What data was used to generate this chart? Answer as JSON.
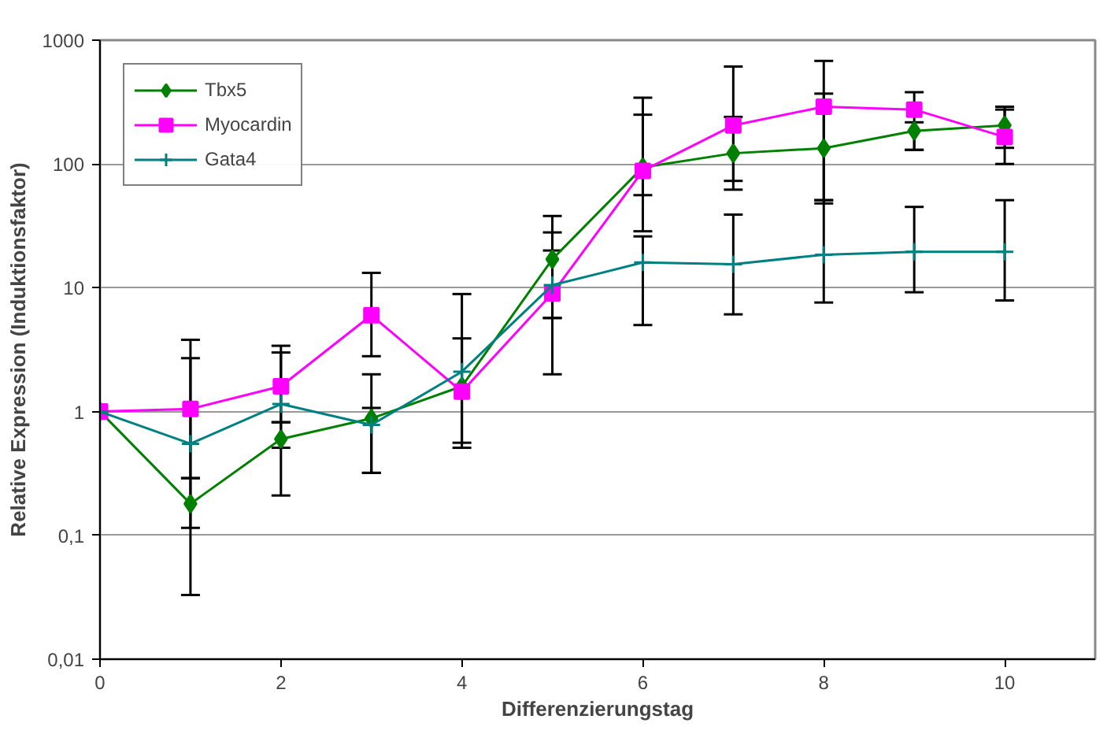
{
  "chart_data": {
    "type": "line",
    "xlabel": "Differenzierungstag",
    "ylabel": "Relative Expression (Induktionsfaktor)",
    "x": [
      0,
      1,
      2,
      3,
      4,
      5,
      6,
      7,
      8,
      9,
      10
    ],
    "log": "y",
    "xlim": [
      0,
      11
    ],
    "xticks": [
      0,
      2,
      4,
      6,
      8,
      10
    ],
    "ylim": [
      0.01,
      1000
    ],
    "yticks": [
      {
        "value": 0.01,
        "label": "0,01"
      },
      {
        "value": 0.1,
        "label": "0,1"
      },
      1,
      10,
      100,
      1000
    ],
    "grid": "y",
    "legend": "top left",
    "line_style": "solid",
    "series": [
      {
        "name": "Tbx5",
        "color": "#008000",
        "marker": "diamond",
        "values": [
          1,
          0.18,
          0.6,
          0.88,
          1.6,
          17,
          94,
          122,
          134,
          185,
          205
        ],
        "errors": [
          null,
          [
            0.033,
            0.29
          ],
          [
            0.21,
            0.82
          ],
          [
            0.32,
            2.0
          ],
          [
            0.56,
            3.9
          ],
          [
            5.7,
            38
          ],
          [
            28.6,
            343
          ],
          [
            62,
            240
          ],
          [
            48,
            370
          ],
          [
            130,
            217
          ],
          [
            135,
            290
          ]
        ]
      },
      {
        "name": "Myocardin",
        "color": "#ff00ff",
        "marker": "square",
        "values": [
          1,
          1.05,
          1.6,
          6,
          1.45,
          9,
          88,
          205,
          290,
          275,
          165
        ],
        "errors": [
          null,
          [
            0.29,
            3.8
          ],
          [
            0.82,
            3.4
          ],
          [
            2.8,
            13.2
          ],
          null,
          [
            2.0,
            28
          ],
          [
            56,
            250
          ],
          [
            73,
            612
          ],
          [
            51,
            680
          ],
          [
            130,
            380
          ],
          [
            100,
            275
          ]
        ]
      },
      {
        "name": "Gata4",
        "color": "#008080",
        "marker": "cross",
        "values": [
          1,
          0.55,
          1.15,
          0.78,
          2.1,
          10.5,
          16,
          15.5,
          18.5,
          19.5,
          19.5
        ],
        "errors": [
          null,
          [
            0.115,
            2.7
          ],
          [
            0.51,
            3.0
          ],
          [
            0.32,
            1.07
          ],
          [
            0.51,
            8.9
          ],
          [
            5.7,
            20
          ],
          [
            5.0,
            26
          ],
          [
            6.1,
            39
          ],
          [
            7.6,
            51
          ],
          [
            9.2,
            45
          ],
          [
            7.9,
            51
          ]
        ]
      }
    ]
  }
}
